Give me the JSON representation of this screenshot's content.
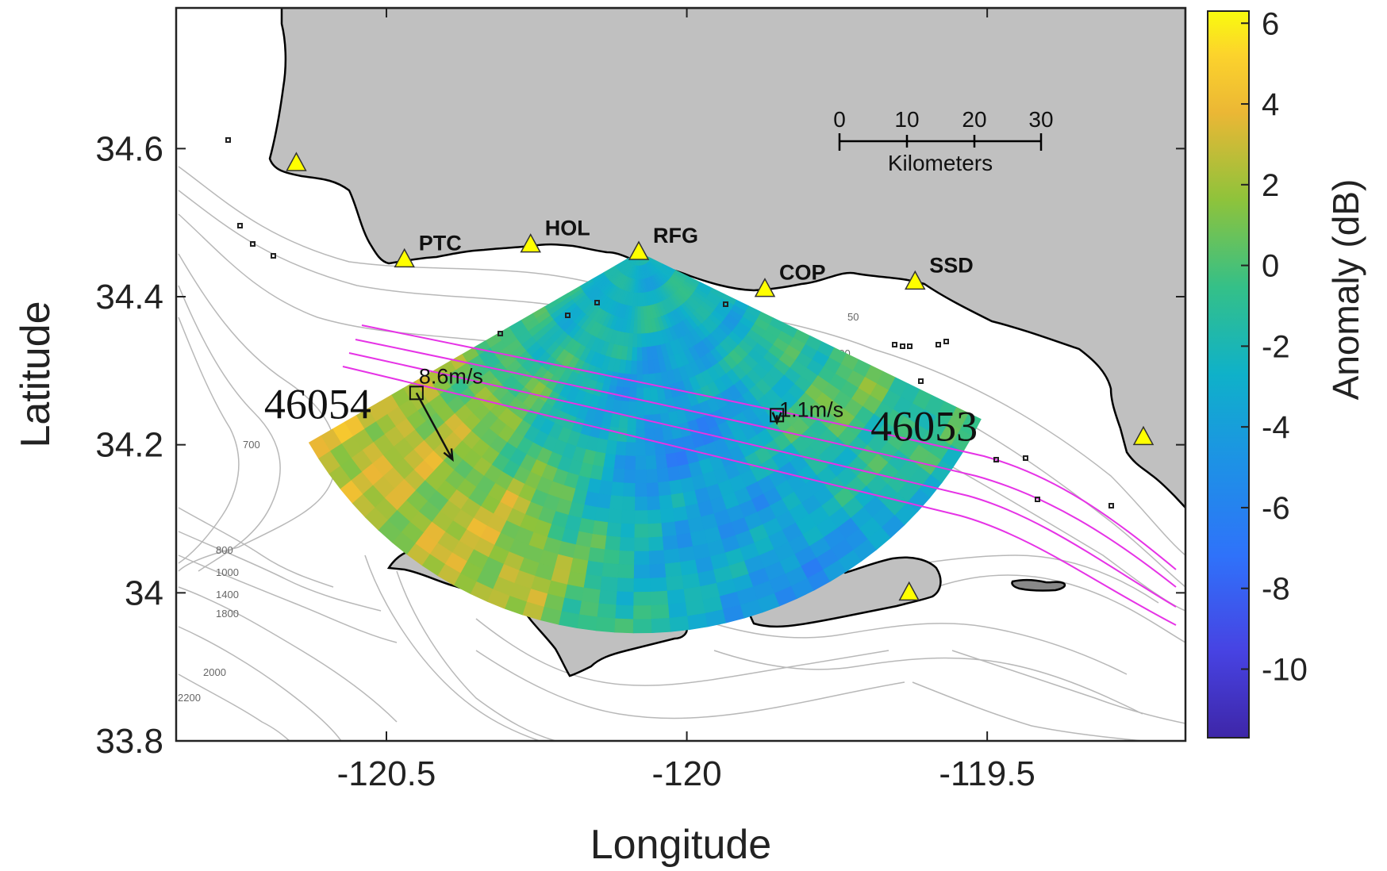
{
  "axes": {
    "xlabel": "Longitude",
    "ylabel": "Latitude",
    "xlim": [
      -120.85,
      -119.17
    ],
    "ylim": [
      33.8,
      34.79
    ],
    "xticks": [
      -120.5,
      -120,
      -119.5
    ],
    "xtick_labels": [
      "-120.5",
      "-120",
      "-119.5"
    ],
    "yticks": [
      33.8,
      34,
      34.2,
      34.4,
      34.6
    ],
    "ytick_labels": [
      "33.8",
      "34",
      "34.2",
      "34.4",
      "34.6"
    ]
  },
  "colorbar": {
    "label": "Anomaly (dB)",
    "range": [
      -11.7,
      6.3
    ],
    "ticks": [
      6,
      4,
      2,
      0,
      -2,
      -4,
      -6,
      -8,
      -10
    ],
    "tick_labels": [
      "6",
      "4",
      "2",
      "0",
      "-2",
      "-4",
      "-6",
      "-8",
      "-10"
    ],
    "colormap": "parula"
  },
  "stations": [
    {
      "name": "PTC",
      "lon": -120.47,
      "lat": 34.45
    },
    {
      "name": "HOL",
      "lon": -120.26,
      "lat": 34.47
    },
    {
      "name": "RFG",
      "lon": -120.08,
      "lat": 34.46
    },
    {
      "name": "COP",
      "lon": -119.87,
      "lat": 34.41
    },
    {
      "name": "SSD",
      "lon": -119.62,
      "lat": 34.42
    }
  ],
  "unlabeled_stations": [
    {
      "lon": -120.65,
      "lat": 34.58
    },
    {
      "lon": -119.24,
      "lat": 34.21
    },
    {
      "lon": -119.63,
      "lat": 34.0
    }
  ],
  "buoys": [
    {
      "id": "46054",
      "lon": -120.45,
      "lat": 34.27,
      "wind_label": "8.6m/s",
      "wind_to_lon": -120.39,
      "wind_to_lat": 34.18
    },
    {
      "id": "46053",
      "lon": -119.85,
      "lat": 34.24,
      "wind_label": "1.1m/s",
      "wind_to_lon": -119.85,
      "wind_to_lat": 34.23
    }
  ],
  "scale_bar": {
    "title": "Kilometers",
    "tick_labels": [
      "0",
      "10",
      "20",
      "30"
    ]
  },
  "contour_labels": [
    "50",
    "100",
    "700",
    "800",
    "1000",
    "1400",
    "1800",
    "2000",
    "2200"
  ],
  "colors": {
    "land": "#c0c0c0",
    "coastline": "#000000",
    "bathymetry_contour": "#b8b8b8",
    "station_marker": "#ffff00",
    "shipping_lanes": "#e633e6"
  },
  "chart_data": {
    "type": "heatmap",
    "title": "",
    "xlabel": "Longitude",
    "ylabel": "Latitude",
    "xlim": [
      -120.85,
      -119.17
    ],
    "ylim": [
      33.8,
      34.79
    ],
    "value_label": "Anomaly (dB)",
    "value_range": [
      -11.7,
      6.3
    ],
    "radar_origin": {
      "lon": -120.08,
      "lat": 34.46
    },
    "coverage": "fan-shaped sector south of RFG, approximately 200° to 305° clockwise from east, ranges up to about 50 km",
    "approximate_features": [
      {
        "region": "northwest edge near 46054",
        "lon": -120.6,
        "lat": 34.27,
        "anomaly_db": 4
      },
      {
        "region": "southwest near Santa Rosa Island",
        "lon": -120.33,
        "lat": 34.05,
        "anomaly_db": 3
      },
      {
        "region": "center of fan",
        "lon": -120.0,
        "lat": 34.2,
        "anomaly_db": -6
      },
      {
        "region": "southeast near Santa Cruz Island",
        "lon": -119.8,
        "lat": 34.05,
        "anomaly_db": -5
      },
      {
        "region": "near 46053",
        "lon": -119.75,
        "lat": 34.25,
        "anomaly_db": 1
      }
    ]
  }
}
